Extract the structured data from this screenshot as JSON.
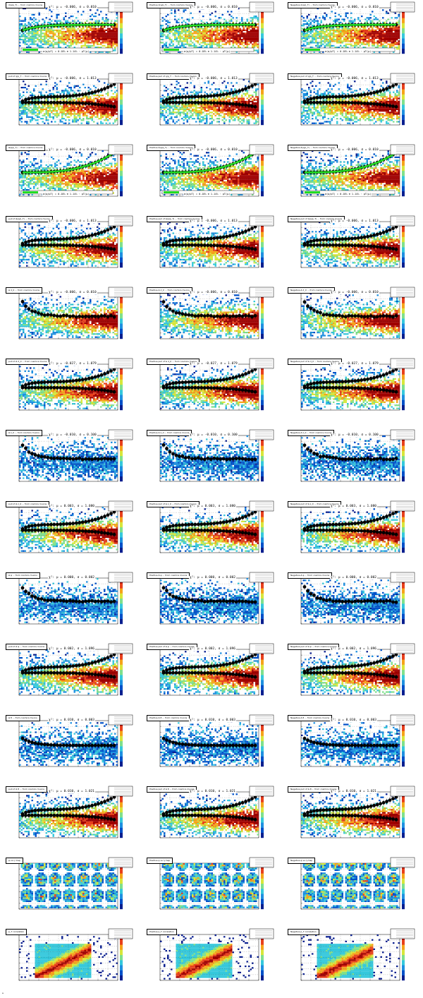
{
  "chart_data": [
    {
      "type": "heatmap",
      "title": "σ(q/p_T) ... from cosmics muons",
      "overlay": "trend-low",
      "fit": true,
      "fit_text": "χ²: μ = -0.006, σ = 0.010",
      "legend": "σ(q/pT) = 0.18% ⊕ 1.14% · pT(μ)"
    },
    {
      "type": "heatmap",
      "title": "Positive σ(q/p_T) ... from cosmics muons",
      "overlay": "trend-low",
      "fit": true,
      "fit_text": "χ²: μ = -0.006, σ = 0.010",
      "legend": "σ(q/pT) = 0.18% ⊕ 1.14% · pT(μ)"
    },
    {
      "type": "heatmap",
      "title": "Negative σ(q/p_T) ... from cosmics muons",
      "overlay": "trend-low",
      "fit": true,
      "fit_text": "χ²: μ = -0.006, σ = 0.010",
      "legend": "σ(q/pT) = 0.18% ⊕ 1.14% · pT(μ)"
    },
    {
      "type": "heatmap",
      "title": "pull of q/p_T ... from cosmics muons",
      "overlay": "double-arc",
      "fit": false,
      "fit_text": "χ²: μ = -0.006, σ = 1.013"
    },
    {
      "type": "heatmap",
      "title": "Positive pull of q/p_T ... from cosmics muons",
      "overlay": "double-arc",
      "fit": false,
      "fit_text": "χ²: μ = -0.006, σ = 1.013"
    },
    {
      "type": "heatmap",
      "title": "Negative pull of q/p_T ... from cosmics muons",
      "overlay": "double-arc",
      "fit": false,
      "fit_text": "χ²: μ = -0.006, σ = 1.013"
    },
    {
      "type": "heatmap",
      "title": "Δ(q/p_T) ... from cosmics muons",
      "overlay": "trend-high",
      "fit": true,
      "fit_text": "χ²: μ = -0.006, σ = 0.010",
      "legend": "σ(q/pT) = 0.18% ⊕ 1.14% · pT(μ)"
    },
    {
      "type": "heatmap",
      "title": "Positive Δ(q/p_T) ... from cosmics muons",
      "overlay": "trend-high",
      "fit": true,
      "fit_text": "χ²: μ = -0.006, σ = 0.010",
      "legend": "σ(q/pT) = 0.18% ⊕ 1.14% · pT(μ)"
    },
    {
      "type": "heatmap",
      "title": "Negative Δ(q/p_T) ... from cosmics muons",
      "overlay": "trend-high",
      "fit": true,
      "fit_text": "χ²: μ = -0.006, σ = 0.010",
      "legend": "σ(q/pT) = 0.18% ⊕ 1.14% · pT(μ)"
    },
    {
      "type": "heatmap",
      "title": "pull of Δ(q/p_T) ... from cosmics muons",
      "overlay": "double-arc",
      "fit": false,
      "fit_text": "χ²: μ = -0.006, σ = 1.013"
    },
    {
      "type": "heatmap",
      "title": "Positive pull of Δ(q/p_T) ... from cosmics muons",
      "overlay": "double-arc",
      "fit": false,
      "fit_text": "χ²: μ = -0.006, σ = 1.013"
    },
    {
      "type": "heatmap",
      "title": "Negative pull of Δ(q/p_T) ... from cosmics muons",
      "overlay": "double-arc",
      "fit": false,
      "fit_text": "χ²: μ = -0.006, σ = 1.013"
    },
    {
      "type": "heatmap",
      "title": "Δ d_0 ... from cosmics muons",
      "overlay": "single-arc",
      "fit": false,
      "fit_text": "χ²: μ = -0.006, σ = 0.010"
    },
    {
      "type": "heatmap",
      "title": "Positive Δ d_0 ... from cosmics muons",
      "overlay": "single-arc",
      "fit": false,
      "fit_text": "χ²: μ = -0.006, σ = 0.010"
    },
    {
      "type": "heatmap",
      "title": "Negative Δ d_0 ... from cosmics muons",
      "overlay": "single-arc",
      "fit": false,
      "fit_text": "χ²: μ = -0.006, σ = 0.010"
    },
    {
      "type": "heatmap",
      "title": "pull of Δ d_0 ... from cosmics muons",
      "overlay": "double-arc",
      "fit": false,
      "fit_text": "χ²: μ = -0.027, σ = 1.079"
    },
    {
      "type": "heatmap",
      "title": "Positive pull of Δ d_0 ... from cosmics muons",
      "overlay": "double-arc",
      "fit": false,
      "fit_text": "χ²: μ = -0.027, σ = 1.079"
    },
    {
      "type": "heatmap",
      "title": "Negative pull of Δ d_0 ... from cosmics muons",
      "overlay": "double-arc",
      "fit": false,
      "fit_text": "χ²: μ = -0.027, σ = 1.079"
    },
    {
      "type": "heatmap",
      "title": "Δ z_0 ... from cosmics muons",
      "overlay": "single-arc",
      "fit": false,
      "fit_text": "χ²: μ = -0.010, σ = 0.100",
      "palette": "blue"
    },
    {
      "type": "heatmap",
      "title": "Positive Δ z_0 ... from cosmics muons",
      "overlay": "single-arc",
      "fit": false,
      "fit_text": "χ²: μ = -0.010, σ = 0.100",
      "palette": "blue"
    },
    {
      "type": "heatmap",
      "title": "Negative Δ z_0 ... from cosmics muons",
      "overlay": "single-arc",
      "fit": false,
      "fit_text": "χ²: μ = -0.010, σ = 0.100",
      "palette": "blue"
    },
    {
      "type": "heatmap",
      "title": "pull of Δ z_0 ... from cosmics muons",
      "overlay": "double-arc",
      "fit": false,
      "fit_text": "χ²: μ = 0.003, σ = 1.080"
    },
    {
      "type": "heatmap",
      "title": "Positive pull of Δ z_0 ... from cosmics muons",
      "overlay": "double-arc",
      "fit": false,
      "fit_text": "χ²: μ = 0.003, σ = 1.080"
    },
    {
      "type": "heatmap",
      "title": "Negative pull of Δ z_0 ... from cosmics muons",
      "overlay": "double-arc",
      "fit": false,
      "fit_text": "χ²: μ = 0.003, σ = 1.080"
    },
    {
      "type": "heatmap",
      "title": "Δ φ ... from cosmics muons",
      "overlay": "single-arc",
      "fit": false,
      "fit_text": "χ²: μ = 0.000, σ = 0.002",
      "palette": "blue"
    },
    {
      "type": "heatmap",
      "title": "Positive Δ φ ... from cosmics muons",
      "overlay": "single-arc",
      "fit": false,
      "fit_text": "χ²: μ = 0.000, σ = 0.002",
      "palette": "blue"
    },
    {
      "type": "heatmap",
      "title": "Negative Δ φ ... from cosmics muons",
      "overlay": "single-arc",
      "fit": false,
      "fit_text": "χ²: μ = 0.000, σ = 0.002",
      "palette": "blue"
    },
    {
      "type": "heatmap",
      "title": "pull of Δ φ ... from cosmics muons",
      "overlay": "double-arc",
      "fit": false,
      "fit_text": "χ²: μ = 0.002, σ = 1.096"
    },
    {
      "type": "heatmap",
      "title": "Positive pull of Δ φ ... from cosmics muons",
      "overlay": "double-arc",
      "fit": false,
      "fit_text": "χ²: μ = 0.002, σ = 1.096"
    },
    {
      "type": "heatmap",
      "title": "Negative pull of Δ φ ... from cosmics muons",
      "overlay": "double-arc",
      "fit": false,
      "fit_text": "χ²: μ = 0.002, σ = 1.096"
    },
    {
      "type": "heatmap",
      "title": "Δ θ ... from cosmics muons",
      "overlay": "single-arc-small",
      "fit": false,
      "fit_text": "χ²: μ = 0.010, σ = 0.003",
      "palette": "blue"
    },
    {
      "type": "heatmap",
      "title": "Positive Δ θ ... from cosmics muons",
      "overlay": "single-arc-small",
      "fit": false,
      "fit_text": "χ²: μ = 0.010, σ = 0.003",
      "palette": "blue"
    },
    {
      "type": "heatmap",
      "title": "Negative Δ θ ... from cosmics muons",
      "overlay": "single-arc-small",
      "fit": false,
      "fit_text": "χ²: μ = 0.010, σ = 0.003",
      "palette": "blue"
    },
    {
      "type": "heatmap",
      "title": "pull of Δ θ ... from cosmics muons",
      "overlay": "double-arc",
      "fit": false,
      "fit_text": "χ²: μ = 0.010, σ = 1.021"
    },
    {
      "type": "heatmap",
      "title": "Positive pull of Δ θ ... from cosmics muons",
      "overlay": "double-arc",
      "fit": false,
      "fit_text": "χ²: μ = 0.010, σ = 1.021"
    },
    {
      "type": "heatmap",
      "title": "Negative pull of Δ θ ... from cosmics muons",
      "overlay": "double-arc",
      "fit": false,
      "fit_text": "χ²: μ = 0.010, σ = 1.021"
    },
    {
      "type": "heatmap",
      "title": "φ vs η map",
      "overlay": "none",
      "fit": false,
      "fit_text": "",
      "pattern": "blobs"
    },
    {
      "type": "heatmap",
      "title": "Positive φ vs η map",
      "overlay": "none",
      "fit": false,
      "fit_text": "",
      "pattern": "blobs"
    },
    {
      "type": "heatmap",
      "title": "Negative φ vs η map",
      "overlay": "none",
      "fit": false,
      "fit_text": "",
      "pattern": "blobs"
    },
    {
      "type": "heatmap",
      "title": "p_T correlation",
      "overlay": "none",
      "fit": false,
      "fit_text": "",
      "pattern": "diagonal"
    },
    {
      "type": "heatmap",
      "title": "Positive p_T correlation",
      "overlay": "none",
      "fit": false,
      "fit_text": "",
      "pattern": "diagonal"
    },
    {
      "type": "heatmap",
      "title": "Negative p_T correlation",
      "overlay": "none",
      "fit": false,
      "fit_text": "",
      "pattern": "diagonal"
    }
  ],
  "colors": {
    "palette": [
      "#0a1f8f",
      "#0050c8",
      "#1e90e0",
      "#35c8dc",
      "#7fe08c",
      "#d8e63a",
      "#f5a31a",
      "#e8401c",
      "#a00000"
    ],
    "fit_line": "#22dd22",
    "marker": "#000000"
  }
}
